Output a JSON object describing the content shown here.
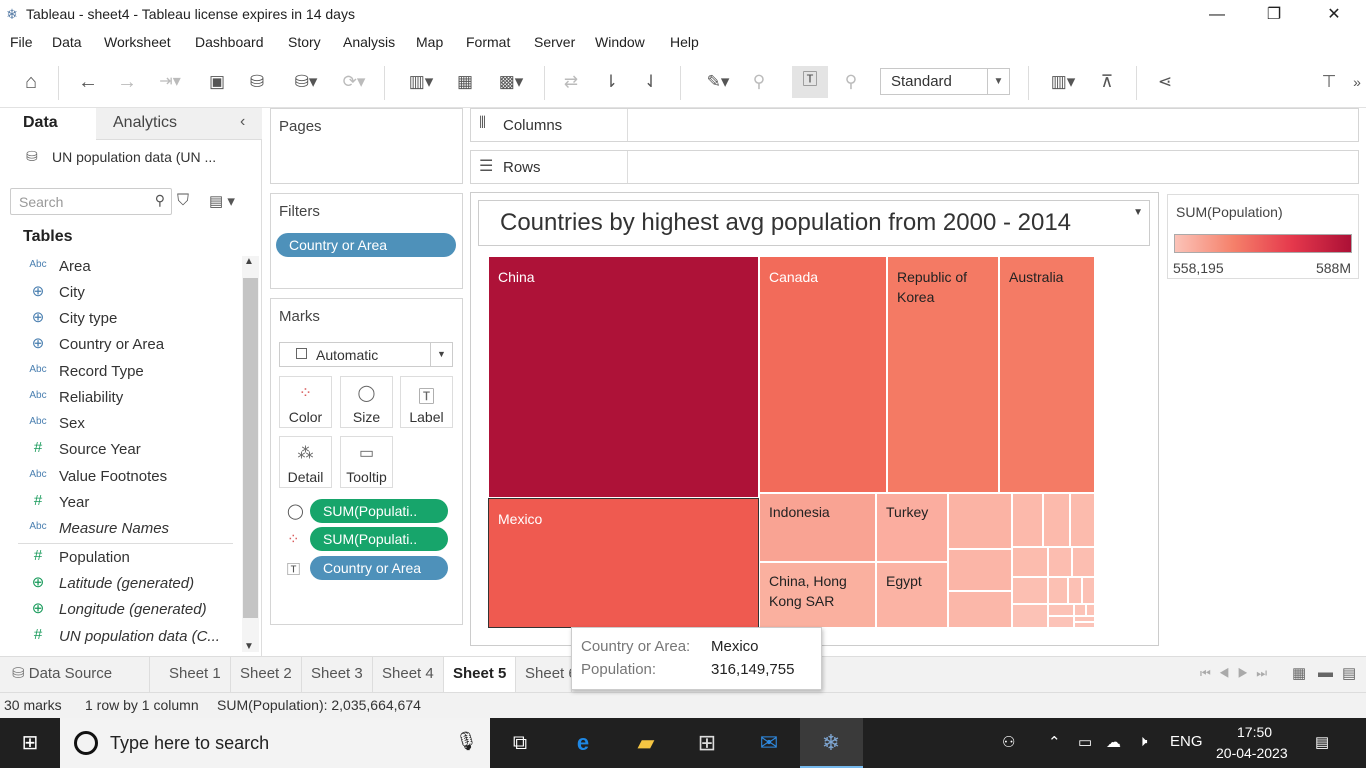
{
  "window": {
    "title": "Tableau - sheet4 - Tableau license expires in 14 days",
    "controls": {
      "minimize": "—",
      "maximize": "❐",
      "close": "✕"
    }
  },
  "menu": [
    "File",
    "Data",
    "Worksheet",
    "Dashboard",
    "Story",
    "Analysis",
    "Map",
    "Format",
    "Server",
    "Window",
    "Help"
  ],
  "toolbar": {
    "fit_select": "Standard"
  },
  "data_pane": {
    "tab_data": "Data",
    "tab_analytics": "Analytics",
    "datasource": "UN population data (UN ...",
    "search_placeholder": "Search",
    "tables_heading": "Tables",
    "fields": [
      {
        "type": "Abc",
        "name": "Area"
      },
      {
        "type": "⊕",
        "name": "City"
      },
      {
        "type": "⊕",
        "name": "City type"
      },
      {
        "type": "⊕",
        "name": "Country or Area"
      },
      {
        "type": "Abc",
        "name": "Record Type"
      },
      {
        "type": "Abc",
        "name": "Reliability"
      },
      {
        "type": "Abc",
        "name": "Sex"
      },
      {
        "type": "#",
        "name": "Source Year"
      },
      {
        "type": "Abc",
        "name": "Value Footnotes"
      },
      {
        "type": "#",
        "name": "Year"
      },
      {
        "type": "Abc",
        "name": "Measure Names"
      },
      {
        "type": "#",
        "name": "Population"
      },
      {
        "type": "⊕",
        "name": "Latitude (generated)"
      },
      {
        "type": "⊕",
        "name": "Longitude (generated)"
      },
      {
        "type": "#",
        "name": "UN population data (C..."
      }
    ]
  },
  "cards": {
    "pages": "Pages",
    "filters": "Filters",
    "filter_pill": "Country or Area",
    "marks": "Marks",
    "mark_type": "Automatic",
    "mark_buttons": [
      "Color",
      "Size",
      "Label",
      "Detail",
      "Tooltip"
    ],
    "mark_pills": [
      "SUM(Populati..",
      "SUM(Populati..",
      "Country or Area"
    ]
  },
  "shelves": {
    "columns": "Columns",
    "rows": "Rows"
  },
  "view": {
    "title": "Countries by highest avg population from 2000 - 2014",
    "treemap_labels": [
      "China",
      "Canada",
      "Republic of Korea",
      "Australia",
      "Mexico",
      "Indonesia",
      "Turkey",
      "China, Hong Kong SAR",
      "Egypt"
    ]
  },
  "legend": {
    "title": "SUM(Population)",
    "min": "558,195",
    "max": "588M"
  },
  "tooltip": {
    "key1": "Country or Area:",
    "val1": "Mexico",
    "key2": "Population:",
    "val2": "316,149,755"
  },
  "sheet_tabs": [
    "Data Source",
    "Sheet 1",
    "Sheet 2",
    "Sheet 3",
    "Sheet 4",
    "Sheet 5",
    "Sheet 6"
  ],
  "status": {
    "marks": "30 marks",
    "rows": "1 row by 1 column",
    "sum": "SUM(Population): 2,035,664,674"
  },
  "taskbar": {
    "search_placeholder": "Type here to search",
    "lang": "ENG",
    "time": "17:50",
    "date": "20-04-2023"
  },
  "colors": {
    "china": "#ae1238",
    "mexico": "#ef5a50",
    "canada": "#f26b5a",
    "korea": "#f47a64",
    "australia": "#f47b65",
    "light": "#f9a393",
    "lighter": "#fbb0a2",
    "accent_blue": "#4e91ba",
    "accent_green": "#17a56b"
  }
}
